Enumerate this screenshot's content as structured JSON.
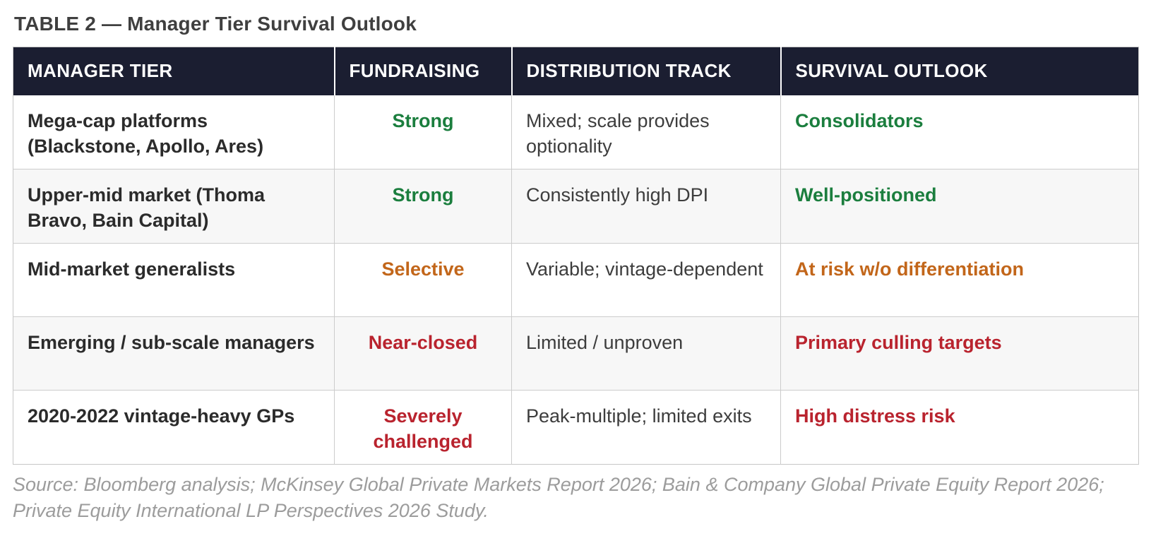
{
  "title": "TABLE 2 — Manager Tier Survival Outlook",
  "colors": {
    "header_bg": "#1b1e31",
    "green": "#1b7e3e",
    "orange": "#c2661a",
    "red": "#b9232e",
    "alt_row_bg": "#f7f7f7",
    "border": "#cccccc",
    "source_text": "#9c9c9c"
  },
  "table": {
    "columns": {
      "tier": "MANAGER TIER",
      "fundraising": "FUNDRAISING",
      "distribution": "DISTRIBUTION TRACK",
      "outlook": "SURVIVAL OUTLOOK"
    },
    "rows": [
      {
        "tier": "Mega-cap platforms (Blackstone, Apollo, Ares)",
        "fundraising": "Strong",
        "fundraising_status": "green",
        "distribution": "Mixed; scale provides optionality",
        "outlook": "Consolidators",
        "outlook_status": "green"
      },
      {
        "tier": "Upper-mid market (Thoma Bravo, Bain Capital)",
        "fundraising": "Strong",
        "fundraising_status": "green",
        "distribution": "Consistently high DPI",
        "outlook": "Well-positioned",
        "outlook_status": "green"
      },
      {
        "tier": "Mid-market generalists",
        "fundraising": "Selective",
        "fundraising_status": "orange",
        "distribution": "Variable; vintage-dependent",
        "outlook": "At risk w/o differentiation",
        "outlook_status": "orange"
      },
      {
        "tier": "Emerging / sub-scale managers",
        "fundraising": "Near-closed",
        "fundraising_status": "red",
        "distribution": "Limited / unproven",
        "outlook": "Primary culling targets",
        "outlook_status": "red"
      },
      {
        "tier": "2020-2022 vintage-heavy GPs",
        "fundraising": "Severely challenged",
        "fundraising_status": "red",
        "distribution": "Peak-multiple; limited exits",
        "outlook": "High distress risk",
        "outlook_status": "red"
      }
    ]
  },
  "source": "Source: Bloomberg analysis; McKinsey Global Private Markets Report 2026; Bain & Company Global Private Equity Report 2026; Private Equity International LP Perspectives 2026 Study."
}
